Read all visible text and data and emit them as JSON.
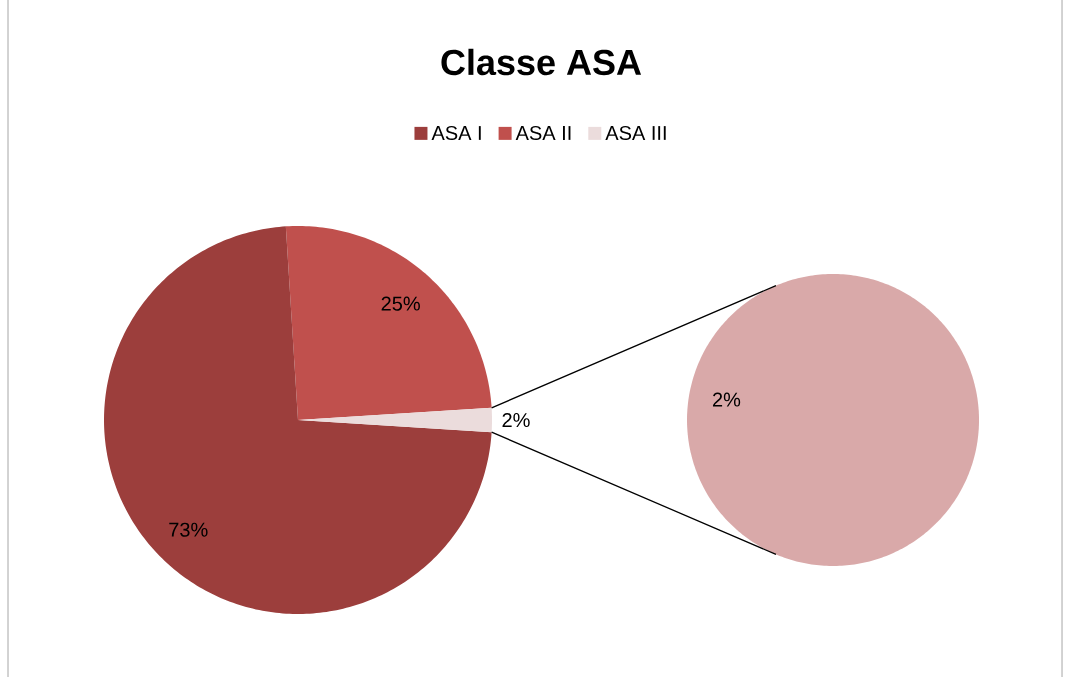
{
  "chart_data": [
    {
      "type": "pie",
      "title": "Classe ASA",
      "categories": [
        "ASA I",
        "ASA II",
        "ASA III"
      ],
      "values": [
        73,
        25,
        2
      ],
      "colors": [
        "#9c3e3c",
        "#c0504d",
        "#ebdcdc"
      ],
      "legend": "top",
      "value_labels": [
        "73%",
        "25%",
        "2%"
      ]
    },
    {
      "type": "pie",
      "categories": [
        null
      ],
      "values": [
        2
      ],
      "colors": [
        "#d9a9a9"
      ],
      "value_labels": [
        "2%"
      ]
    }
  ]
}
